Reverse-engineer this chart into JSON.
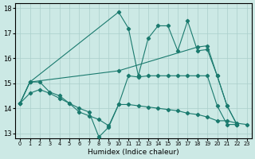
{
  "xlabel": "Humidex (Indice chaleur)",
  "bg_color": "#cce9e5",
  "grid_color": "#aacfcb",
  "line_color": "#1a7a6e",
  "xlim": [
    -0.5,
    23.5
  ],
  "ylim": [
    12.8,
    18.2
  ],
  "yticks": [
    13,
    14,
    15,
    16,
    17,
    18
  ],
  "xticks": [
    0,
    1,
    2,
    3,
    4,
    5,
    6,
    7,
    8,
    9,
    10,
    11,
    12,
    13,
    14,
    15,
    16,
    17,
    18,
    19,
    20,
    21,
    22,
    23
  ],
  "line1_x": [
    0,
    1,
    2,
    3,
    4,
    5,
    6,
    7,
    8,
    9,
    10,
    11,
    12,
    13,
    14,
    15,
    16,
    17,
    18,
    19,
    20,
    21,
    22,
    23
  ],
  "line1_y": [
    14.2,
    14.6,
    14.75,
    14.6,
    14.4,
    14.2,
    13.85,
    13.7,
    13.55,
    13.3,
    14.15,
    14.15,
    14.1,
    14.05,
    14.0,
    13.95,
    13.9,
    13.8,
    13.75,
    13.65,
    13.5,
    13.5,
    13.4,
    13.35
  ],
  "line2_x": [
    0,
    1,
    2,
    3,
    4,
    5,
    6,
    7,
    8,
    9,
    10,
    11,
    12,
    13,
    14,
    15,
    16,
    17,
    18,
    19,
    20,
    21,
    22
  ],
  "line2_y": [
    14.2,
    15.05,
    15.05,
    14.65,
    14.5,
    14.2,
    14.0,
    13.85,
    12.85,
    13.25,
    14.15,
    15.3,
    15.25,
    15.3,
    15.3,
    15.3,
    15.3,
    15.3,
    15.3,
    15.3,
    14.1,
    13.35,
    13.35
  ],
  "line3_x": [
    0,
    1,
    10,
    11,
    12,
    13,
    14,
    15,
    16,
    17,
    18,
    19,
    20,
    21,
    22
  ],
  "line3_y": [
    14.2,
    15.05,
    17.85,
    17.2,
    15.3,
    16.8,
    17.3,
    17.3,
    16.3,
    17.5,
    16.3,
    16.35,
    15.3,
    14.1,
    13.35
  ],
  "line4_x": [
    0,
    1,
    10,
    18,
    19,
    20,
    21,
    22
  ],
  "line4_y": [
    14.2,
    15.05,
    15.5,
    16.45,
    16.5,
    15.3,
    14.1,
    13.35
  ]
}
